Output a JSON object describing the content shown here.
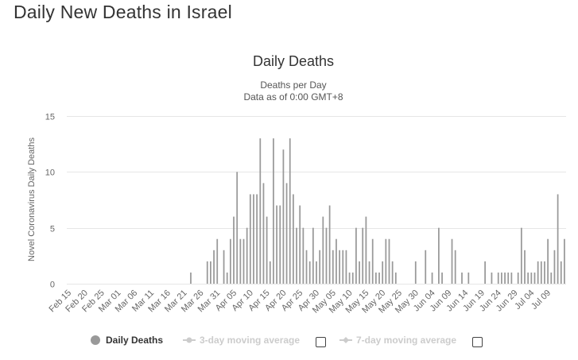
{
  "page": {
    "heading": "Daily New Deaths in Israel"
  },
  "colors": {
    "bar": "#999999",
    "grid": "#e6e6e6",
    "axis_text": "#666666",
    "legend_inactive": "#cccccc",
    "legend_active": "#333333"
  },
  "chart_data": {
    "type": "bar",
    "title": "Daily Deaths",
    "subtitle_lines": [
      "Deaths per Day",
      "Data as of 0:00 GMT+8"
    ],
    "xlabel": "",
    "ylabel": "Novel Coronavirus Daily Deaths",
    "ylim": [
      0,
      15
    ],
    "y_ticks": [
      0,
      5,
      10,
      15
    ],
    "grid": true,
    "first_date": "Feb 15",
    "x_tick_labels": [
      "Feb 15",
      "Feb 20",
      "Feb 25",
      "Mar 01",
      "Mar 06",
      "Mar 11",
      "Mar 16",
      "Mar 21",
      "Mar 26",
      "Mar 31",
      "Apr 05",
      "Apr 10",
      "Apr 15",
      "Apr 20",
      "Apr 25",
      "Apr 30",
      "May 05",
      "May 10",
      "May 15",
      "May 20",
      "May 25",
      "May 30",
      "Jun 04",
      "Jun 09",
      "Jun 14",
      "Jun 19",
      "Jun 24",
      "Jun 29",
      "Jul 04",
      "Jul 09"
    ],
    "x_tick_every": 5,
    "series": [
      {
        "name": "Daily Deaths",
        "values": [
          0,
          0,
          0,
          0,
          0,
          0,
          0,
          0,
          0,
          0,
          0,
          0,
          0,
          0,
          0,
          0,
          0,
          0,
          0,
          0,
          0,
          0,
          0,
          0,
          0,
          0,
          0,
          0,
          0,
          0,
          0,
          0,
          0,
          0,
          0,
          0,
          0,
          1,
          0,
          0,
          0,
          0,
          2,
          2,
          3,
          4,
          0,
          3,
          1,
          4,
          6,
          10,
          4,
          4,
          5,
          8,
          8,
          8,
          13,
          9,
          6,
          2,
          13,
          7,
          7,
          12,
          9,
          13,
          8,
          5,
          7,
          5,
          3,
          2,
          5,
          2,
          3,
          6,
          5,
          7,
          3,
          4,
          3,
          3,
          3,
          1,
          1,
          5,
          2,
          5,
          6,
          2,
          4,
          1,
          1,
          2,
          4,
          4,
          2,
          1,
          0,
          0,
          0,
          0,
          0,
          2,
          0,
          0,
          3,
          0,
          1,
          0,
          5,
          1,
          0,
          0,
          4,
          3,
          0,
          1,
          0,
          1,
          0,
          0,
          0,
          0,
          2,
          0,
          1,
          0,
          1,
          1,
          1,
          1,
          1,
          0,
          1,
          5,
          3,
          1,
          1,
          1,
          2,
          2,
          2,
          4,
          1,
          3,
          8,
          2,
          4
        ]
      }
    ],
    "legend": [
      {
        "label": "Daily Deaths",
        "symbol": "circle",
        "active": true,
        "checkbox": false
      },
      {
        "label": "3-day moving average",
        "symbol": "line-dot",
        "active": false,
        "checkbox": true
      },
      {
        "label": "7-day moving average",
        "symbol": "line-diamond",
        "active": false,
        "checkbox": true
      }
    ]
  }
}
